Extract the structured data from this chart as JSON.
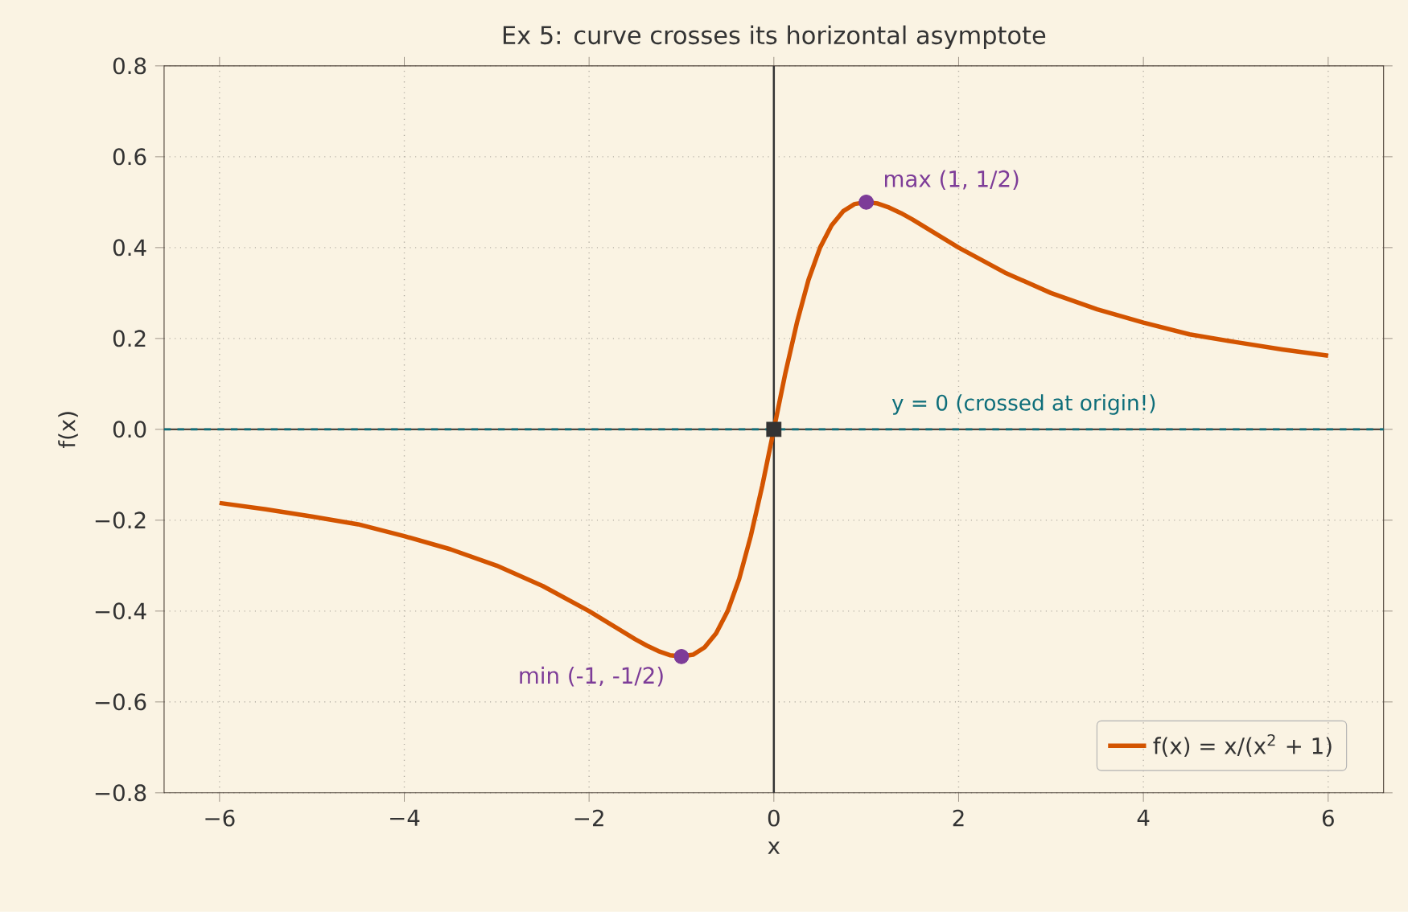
{
  "chart_data": {
    "type": "line",
    "title": "Ex 5: curve crosses its horizontal asymptote",
    "xlabel": "x",
    "ylabel": "f(x)",
    "xlim": [
      -6.6,
      6.6
    ],
    "ylim": [
      -0.8,
      0.8
    ],
    "xticks": [
      {
        "value": -6,
        "label": "−6"
      },
      {
        "value": -4,
        "label": "−4"
      },
      {
        "value": -2,
        "label": "−2"
      },
      0,
      2,
      4,
      6
    ],
    "yticks": [
      {
        "value": -0.8,
        "label": "−0.8"
      },
      {
        "value": -0.6,
        "label": "−0.6"
      },
      {
        "value": -0.4,
        "label": "−0.4"
      },
      {
        "value": -0.2,
        "label": "−0.2"
      },
      {
        "value": 0,
        "label": "0.0"
      },
      0.2,
      0.4,
      0.6,
      0.8
    ],
    "grid": true,
    "legend": "bottom right",
    "series": [
      {
        "name": "f(x) = x/(x$^{2}$ + 1)",
        "color": "#d35400",
        "line_style": "solid",
        "marker": "none",
        "x": [
          -6,
          -5.5,
          -5,
          -4.5,
          -4,
          -3.5,
          -3,
          -2.5,
          -2,
          -1.75,
          -1.5,
          -1.375,
          -1.25,
          -1.125,
          -1,
          -0.875,
          -0.75,
          -0.625,
          -0.5,
          -0.375,
          -0.25,
          -0.125,
          0,
          0.125,
          0.25,
          0.375,
          0.5,
          0.625,
          0.75,
          0.875,
          1,
          1.125,
          1.25,
          1.375,
          1.5,
          1.75,
          2,
          2.5,
          3,
          3.5,
          4,
          4.5,
          5,
          5.5,
          6
        ],
        "values": [
          -0.162,
          -0.176,
          -0.192,
          -0.209,
          -0.235,
          -0.264,
          -0.3,
          -0.345,
          -0.4,
          -0.431,
          -0.462,
          -0.476,
          -0.488,
          -0.497,
          -0.5,
          -0.496,
          -0.48,
          -0.449,
          -0.4,
          -0.329,
          -0.235,
          -0.124,
          0,
          0.124,
          0.235,
          0.329,
          0.4,
          0.449,
          0.48,
          0.496,
          0.5,
          0.497,
          0.488,
          0.476,
          0.462,
          0.431,
          0.4,
          0.345,
          0.3,
          0.264,
          0.235,
          0.209,
          0.192,
          0.176,
          0.162
        ]
      },
      {
        "type": "scatter",
        "color": "#7d3c98",
        "marker": "circle",
        "x": [
          1,
          -1
        ],
        "values": [
          0.5,
          -0.5
        ]
      },
      {
        "type": "scatter",
        "color": "#333333",
        "marker": "square",
        "x": [
          0
        ],
        "values": [
          0
        ]
      }
    ],
    "ref_lines": [
      {
        "axis": "y",
        "value": 0,
        "label": "y = 0 (crossed at origin!)",
        "color": "#0e6e7a",
        "line_style": "dashed"
      },
      {
        "axis": "x",
        "value": 0,
        "color": "#333333",
        "line_style": "solid"
      }
    ],
    "annotations": [
      {
        "text": "max (1, 1/2)",
        "x": 1,
        "y": 0.5
      },
      {
        "text": "min (-1, -1/2)",
        "x": -1,
        "y": -0.5
      }
    ]
  }
}
